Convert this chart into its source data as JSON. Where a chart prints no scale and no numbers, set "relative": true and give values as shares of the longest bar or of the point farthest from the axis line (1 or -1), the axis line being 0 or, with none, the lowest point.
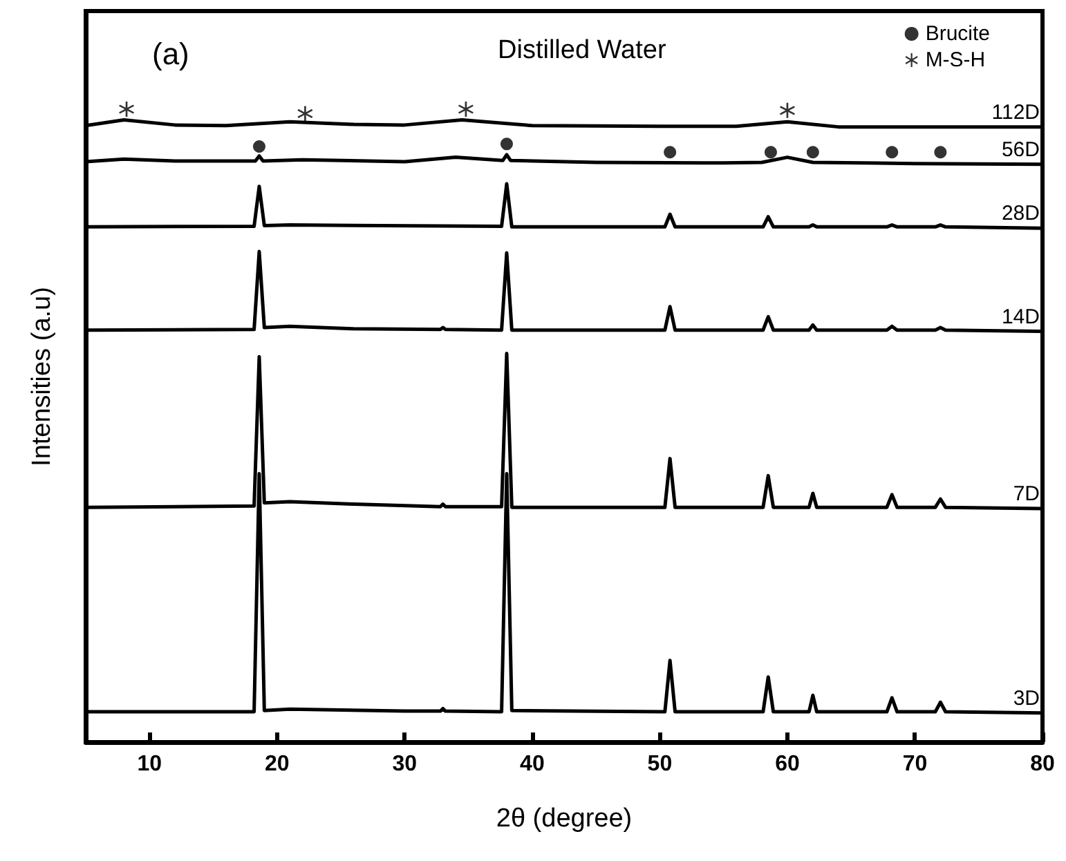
{
  "chart_data": {
    "type": "line",
    "title": "Distilled Water",
    "xlabel": "2θ (degree)",
    "ylabel": "Intensities (a.u)",
    "annotations": [
      "(a)"
    ],
    "relative": true,
    "xlim": [
      5,
      80
    ],
    "xticks": [
      10,
      20,
      30,
      40,
      50,
      60,
      70,
      80
    ],
    "tick_labels": "x",
    "grid": false,
    "legend": "top right",
    "marker": "none",
    "line_style": "solid",
    "series": [
      {
        "name": "3D",
        "color": "#000000",
        "x": [
          5,
          18.2,
          18.6,
          19.0,
          21,
          30,
          32.8,
          33,
          33.2,
          37.6,
          38.0,
          38.4,
          50.4,
          50.8,
          51.2,
          58.1,
          58.5,
          58.9,
          61.7,
          62.0,
          62.3,
          67.8,
          68.2,
          68.6,
          71.6,
          72.0,
          72.4,
          80
        ],
        "values": [
          0.048,
          0.048,
          0.424,
          0.05,
          0.052,
          0.049,
          0.049,
          0.053,
          0.049,
          0.048,
          0.424,
          0.05,
          0.048,
          0.129,
          0.048,
          0.048,
          0.103,
          0.048,
          0.048,
          0.074,
          0.048,
          0.048,
          0.07,
          0.048,
          0.048,
          0.063,
          0.048,
          0.046
        ]
      },
      {
        "name": "7D",
        "color": "#000000",
        "x": [
          5,
          18.2,
          18.6,
          19.0,
          21,
          26,
          32.8,
          33,
          33.2,
          37.6,
          38.0,
          38.4,
          50.4,
          50.8,
          51.2,
          58.1,
          58.5,
          58.9,
          61.7,
          62.0,
          62.3,
          67.8,
          68.2,
          68.6,
          71.6,
          72.0,
          72.4,
          80
        ],
        "values": [
          0.371,
          0.373,
          0.609,
          0.378,
          0.38,
          0.376,
          0.372,
          0.376,
          0.372,
          0.372,
          0.614,
          0.371,
          0.371,
          0.448,
          0.371,
          0.371,
          0.421,
          0.371,
          0.371,
          0.393,
          0.371,
          0.371,
          0.391,
          0.371,
          0.371,
          0.384,
          0.371,
          0.369
        ]
      },
      {
        "name": "14D",
        "color": "#000000",
        "x": [
          5,
          18.2,
          18.6,
          19.0,
          21,
          26,
          32.8,
          33,
          33.2,
          37.6,
          38.0,
          38.4,
          50.4,
          50.8,
          51.2,
          58.1,
          58.5,
          58.9,
          61.7,
          62.0,
          62.3,
          67.8,
          68.2,
          68.6,
          71.6,
          72.0,
          72.4,
          80
        ],
        "values": [
          0.651,
          0.652,
          0.775,
          0.655,
          0.657,
          0.653,
          0.652,
          0.655,
          0.652,
          0.651,
          0.773,
          0.651,
          0.651,
          0.688,
          0.651,
          0.651,
          0.672,
          0.651,
          0.651,
          0.659,
          0.651,
          0.651,
          0.657,
          0.651,
          0.651,
          0.655,
          0.651,
          0.649
        ]
      },
      {
        "name": "28D",
        "color": "#000000",
        "x": [
          5,
          18.2,
          18.6,
          19.0,
          21,
          37.6,
          38.0,
          38.4,
          50.4,
          50.8,
          51.2,
          58.1,
          58.5,
          58.9,
          61.7,
          62.0,
          62.3,
          67.8,
          68.2,
          68.6,
          71.6,
          72.0,
          72.4,
          80
        ],
        "values": [
          0.814,
          0.815,
          0.878,
          0.816,
          0.817,
          0.815,
          0.882,
          0.814,
          0.814,
          0.834,
          0.814,
          0.814,
          0.83,
          0.814,
          0.814,
          0.817,
          0.814,
          0.814,
          0.817,
          0.814,
          0.814,
          0.817,
          0.814,
          0.812
        ]
      },
      {
        "name": "56D",
        "color": "#000000",
        "x": [
          5,
          8,
          12,
          18.3,
          18.6,
          18.9,
          22,
          30,
          34,
          37.7,
          38.0,
          38.3,
          45,
          55,
          58,
          60,
          62,
          70,
          80
        ],
        "values": [
          0.917,
          0.921,
          0.918,
          0.918,
          0.926,
          0.918,
          0.92,
          0.917,
          0.924,
          0.919,
          0.928,
          0.919,
          0.916,
          0.915,
          0.916,
          0.924,
          0.916,
          0.914,
          0.913
        ]
      },
      {
        "name": "112D",
        "color": "#000000",
        "x": [
          5,
          8,
          12,
          16,
          21,
          26,
          30,
          34.5,
          40,
          50,
          56,
          60,
          64,
          72,
          80
        ],
        "values": [
          0.974,
          0.983,
          0.975,
          0.974,
          0.98,
          0.976,
          0.975,
          0.983,
          0.974,
          0.973,
          0.973,
          0.98,
          0.972,
          0.972,
          0.972
        ]
      },
      {
        "name": "Brucite",
        "type": "scatter",
        "marker": "circle",
        "color": "#000000",
        "x": [
          18.6,
          38.0,
          50.8,
          58.7,
          62.0,
          68.2,
          72.0
        ],
        "values": [
          0.941,
          0.945,
          0.932,
          0.932,
          0.932,
          0.932,
          0.932
        ]
      },
      {
        "name": "M-S-H",
        "type": "scatter",
        "marker": "star",
        "color": "#000000",
        "x": [
          8.2,
          22.2,
          34.8,
          60.0
        ],
        "values": [
          1,
          0.993,
          1,
          0.998
        ]
      }
    ]
  }
}
